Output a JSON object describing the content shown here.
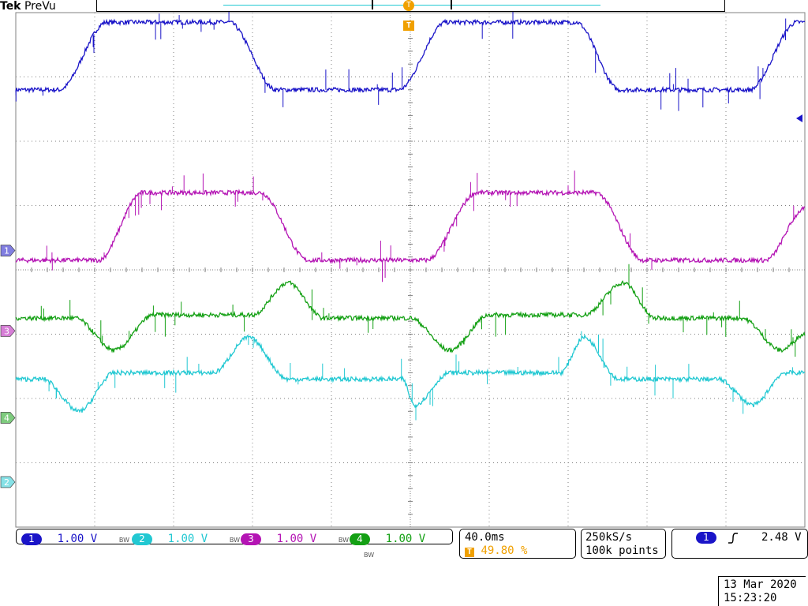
{
  "header": {
    "brand": "Tek",
    "mode": "PreVu",
    "trigger_marker": "T"
  },
  "colors": {
    "ch1": "#1a14c8",
    "ch2": "#22c8d2",
    "ch3": "#b414b4",
    "ch4": "#14a014",
    "trigger": "#f0a000",
    "grid": "#808080"
  },
  "channels": [
    {
      "id": "1",
      "scale": "1.00 V",
      "bw": "BW",
      "color": "#1a14c8"
    },
    {
      "id": "2",
      "scale": "1.00 V",
      "bw": "BW",
      "color": "#22c8d2"
    },
    {
      "id": "3",
      "scale": "1.00 V",
      "bw": "BW",
      "color": "#b414b4"
    },
    {
      "id": "4",
      "scale": "1.00 V",
      "bw": "BW",
      "color": "#14a014"
    }
  ],
  "timebase": {
    "scale": "40.0ms",
    "trigger_position": "49.80 %"
  },
  "sampling": {
    "rate": "250kS/s",
    "record": "100k points"
  },
  "trigger": {
    "source": "1",
    "slope": "rising-edge-icon",
    "level": "2.48 V"
  },
  "datetime": {
    "date": "13 Mar  2020",
    "time": "15:23:20"
  },
  "chart_data": {
    "type": "line",
    "x_unit": "div",
    "y_unit": "div",
    "xlim": [
      0,
      10
    ],
    "ylim": [
      -4,
      4
    ],
    "grid": true,
    "series": [
      {
        "channel": "1",
        "x": [
          0,
          0.55,
          1.15,
          2.7,
          3.3,
          4.85,
          5.45,
          7.1,
          7.65,
          9.3,
          9.9,
          10
        ],
        "y": [
          2.8,
          2.8,
          3.85,
          3.85,
          2.8,
          2.8,
          3.85,
          3.85,
          2.8,
          2.8,
          3.85,
          3.85
        ]
      },
      {
        "channel": "3",
        "x": [
          0,
          1.05,
          1.6,
          3.1,
          3.7,
          5.2,
          5.85,
          7.35,
          7.95,
          9.5,
          10
        ],
        "y": [
          0.15,
          0.15,
          1.2,
          1.2,
          0.15,
          0.15,
          1.2,
          1.2,
          0.15,
          0.15,
          0.95
        ]
      },
      {
        "channel": "4",
        "x": [
          0,
          0.75,
          1.25,
          1.75,
          3.0,
          3.45,
          3.9,
          5.0,
          5.5,
          6.0,
          7.2,
          7.7,
          8.1,
          9.2,
          9.7,
          10
        ],
        "y": [
          -0.75,
          -0.75,
          -1.25,
          -0.7,
          -0.7,
          -0.2,
          -0.75,
          -0.75,
          -1.25,
          -0.7,
          -0.7,
          -0.2,
          -0.75,
          -0.75,
          -1.25,
          -1.0
        ]
      },
      {
        "channel": "2",
        "x": [
          0,
          0.35,
          0.8,
          1.25,
          2.5,
          2.95,
          3.45,
          4.9,
          5.05,
          5.5,
          6.9,
          7.2,
          7.65,
          8.9,
          9.35,
          9.75,
          10
        ],
        "y": [
          -1.7,
          -1.7,
          -2.2,
          -1.6,
          -1.6,
          -1.05,
          -1.7,
          -1.7,
          -2.1,
          -1.6,
          -1.6,
          -1.05,
          -1.7,
          -1.7,
          -2.1,
          -1.6,
          -1.6
        ]
      }
    ],
    "ground_markers": [
      {
        "channel": "1",
        "y": 0.3
      },
      {
        "channel": "3",
        "y": -0.95
      },
      {
        "channel": "4",
        "y": -2.3
      },
      {
        "channel": "2",
        "y": -3.3
      }
    ],
    "trigger_level_y": 1.9
  }
}
